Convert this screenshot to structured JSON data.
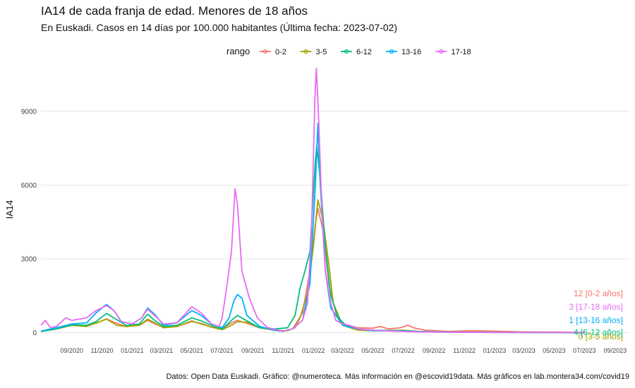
{
  "header": {
    "title": "IA14 de cada franja de edad. Menores de 18 años",
    "subtitle": "En Euskadi. Casos en 14 días por 100.000 habitantes  (Última fecha: 2023-07-02)"
  },
  "footer": {
    "caption": "Datos: Open Data Euskadi. Gráfico: @numeroteca. Más información en @escovid19data.  Más gráficos en lab.montera34.com/covid19"
  },
  "chart_data": {
    "type": "line",
    "title": "IA14 de cada franja de edad. Menores de 18 años",
    "subtitle": "En Euskadi. Casos en 14 días por 100.000 habitantes  (Última fecha: 2023-07-02)",
    "xlabel": "",
    "ylabel": "IA14",
    "xlim": [
      "2020-07-01",
      "2023-10-01"
    ],
    "ylim": [
      -300,
      10800
    ],
    "yticks": [
      0,
      3000,
      6000,
      9000
    ],
    "xticks": [
      {
        "date": "2020-09-01",
        "label": "09/2020"
      },
      {
        "date": "2020-11-01",
        "label": "11/2020"
      },
      {
        "date": "2021-01-01",
        "label": "01/2021"
      },
      {
        "date": "2021-03-01",
        "label": "03/2021"
      },
      {
        "date": "2021-05-01",
        "label": "05/2021"
      },
      {
        "date": "2021-07-01",
        "label": "07/2021"
      },
      {
        "date": "2021-09-01",
        "label": "09/2021"
      },
      {
        "date": "2021-11-01",
        "label": "11/2021"
      },
      {
        "date": "2022-01-01",
        "label": "01/2022"
      },
      {
        "date": "2022-03-01",
        "label": "03/2022"
      },
      {
        "date": "2022-05-01",
        "label": "05/2022"
      },
      {
        "date": "2022-07-01",
        "label": "07/2022"
      },
      {
        "date": "2022-09-01",
        "label": "09/2022"
      },
      {
        "date": "2022-11-01",
        "label": "11/2022"
      },
      {
        "date": "2023-01-01",
        "label": "01/2023"
      },
      {
        "date": "2023-03-01",
        "label": "03/2023"
      },
      {
        "date": "2023-05-01",
        "label": "05/2023"
      },
      {
        "date": "2023-07-01",
        "label": "07/2023"
      },
      {
        "date": "2023-09-01",
        "label": "09/2023"
      }
    ],
    "grid": true,
    "legend": {
      "title": "rango",
      "position": "top"
    },
    "series": [
      {
        "name": "0-2",
        "color": "#F8766D",
        "end_label": "12 [0-2 años]",
        "points": [
          [
            "2020-07-01",
            50
          ],
          [
            "2020-08-01",
            150
          ],
          [
            "2020-09-01",
            300
          ],
          [
            "2020-10-01",
            300
          ],
          [
            "2020-10-20",
            380
          ],
          [
            "2020-11-10",
            560
          ],
          [
            "2020-11-25",
            420
          ],
          [
            "2020-12-20",
            250
          ],
          [
            "2021-01-15",
            300
          ],
          [
            "2021-02-01",
            500
          ],
          [
            "2021-02-15",
            360
          ],
          [
            "2021-03-05",
            220
          ],
          [
            "2021-04-01",
            250
          ],
          [
            "2021-05-01",
            450
          ],
          [
            "2021-05-20",
            380
          ],
          [
            "2021-06-10",
            220
          ],
          [
            "2021-07-01",
            150
          ],
          [
            "2021-07-20",
            400
          ],
          [
            "2021-08-01",
            500
          ],
          [
            "2021-08-20",
            380
          ],
          [
            "2021-09-15",
            200
          ],
          [
            "2021-10-15",
            100
          ],
          [
            "2021-11-01",
            50
          ],
          [
            "2021-11-20",
            150
          ],
          [
            "2021-12-10",
            800
          ],
          [
            "2021-12-25",
            2500
          ],
          [
            "2022-01-05",
            4400
          ],
          [
            "2022-01-10",
            5050
          ],
          [
            "2022-01-20",
            4200
          ],
          [
            "2022-02-01",
            2000
          ],
          [
            "2022-02-15",
            800
          ],
          [
            "2022-03-01",
            350
          ],
          [
            "2022-04-01",
            200
          ],
          [
            "2022-05-01",
            180
          ],
          [
            "2022-05-15",
            250
          ],
          [
            "2022-06-01",
            150
          ],
          [
            "2022-06-25",
            200
          ],
          [
            "2022-07-10",
            300
          ],
          [
            "2022-07-25",
            180
          ],
          [
            "2022-08-15",
            100
          ],
          [
            "2022-10-01",
            50
          ],
          [
            "2022-11-15",
            80
          ],
          [
            "2023-01-01",
            60
          ],
          [
            "2023-03-01",
            30
          ],
          [
            "2023-05-01",
            20
          ],
          [
            "2023-07-02",
            12
          ]
        ]
      },
      {
        "name": "3-5",
        "color": "#A3A500",
        "end_label": "0 [3-5 años]",
        "points": [
          [
            "2020-07-01",
            50
          ],
          [
            "2020-08-01",
            150
          ],
          [
            "2020-09-01",
            300
          ],
          [
            "2020-10-01",
            250
          ],
          [
            "2020-11-10",
            550
          ],
          [
            "2020-12-01",
            300
          ],
          [
            "2020-12-20",
            250
          ],
          [
            "2021-01-15",
            300
          ],
          [
            "2021-02-01",
            550
          ],
          [
            "2021-02-15",
            400
          ],
          [
            "2021-03-05",
            200
          ],
          [
            "2021-04-01",
            250
          ],
          [
            "2021-05-01",
            480
          ],
          [
            "2021-05-20",
            350
          ],
          [
            "2021-06-15",
            200
          ],
          [
            "2021-07-01",
            120
          ],
          [
            "2021-07-20",
            300
          ],
          [
            "2021-08-01",
            450
          ],
          [
            "2021-08-20",
            420
          ],
          [
            "2021-09-15",
            200
          ],
          [
            "2021-10-15",
            100
          ],
          [
            "2021-11-10",
            80
          ],
          [
            "2021-11-25",
            200
          ],
          [
            "2021-12-05",
            600
          ],
          [
            "2021-12-20",
            1600
          ],
          [
            "2022-01-01",
            3500
          ],
          [
            "2022-01-10",
            5400
          ],
          [
            "2022-01-20",
            4600
          ],
          [
            "2022-02-01",
            2800
          ],
          [
            "2022-02-10",
            1200
          ],
          [
            "2022-03-01",
            300
          ],
          [
            "2022-04-01",
            100
          ],
          [
            "2022-05-01",
            80
          ],
          [
            "2022-07-01",
            100
          ],
          [
            "2022-08-01",
            50
          ],
          [
            "2022-10-01",
            30
          ],
          [
            "2023-01-01",
            20
          ],
          [
            "2023-04-01",
            10
          ],
          [
            "2023-07-02",
            0
          ]
        ]
      },
      {
        "name": "6-12",
        "color": "#00BF7D",
        "end_label": "4 [6-12 años]",
        "points": [
          [
            "2020-07-01",
            50
          ],
          [
            "2020-08-01",
            150
          ],
          [
            "2020-09-01",
            320
          ],
          [
            "2020-10-01",
            300
          ],
          [
            "2020-10-20",
            450
          ],
          [
            "2020-11-10",
            780
          ],
          [
            "2020-11-25",
            600
          ],
          [
            "2020-12-20",
            300
          ],
          [
            "2021-01-15",
            350
          ],
          [
            "2021-02-01",
            750
          ],
          [
            "2021-02-15",
            500
          ],
          [
            "2021-03-05",
            250
          ],
          [
            "2021-04-01",
            300
          ],
          [
            "2021-05-01",
            600
          ],
          [
            "2021-05-20",
            480
          ],
          [
            "2021-06-15",
            250
          ],
          [
            "2021-07-01",
            150
          ],
          [
            "2021-07-20",
            500
          ],
          [
            "2021-08-01",
            700
          ],
          [
            "2021-08-20",
            480
          ],
          [
            "2021-09-15",
            200
          ],
          [
            "2021-10-15",
            150
          ],
          [
            "2021-11-10",
            200
          ],
          [
            "2021-11-25",
            700
          ],
          [
            "2021-12-05",
            1800
          ],
          [
            "2021-12-15",
            2500
          ],
          [
            "2021-12-25",
            3300
          ],
          [
            "2022-01-05",
            7000
          ],
          [
            "2022-01-08",
            7600
          ],
          [
            "2022-01-15",
            6200
          ],
          [
            "2022-01-25",
            3500
          ],
          [
            "2022-02-05",
            1500
          ],
          [
            "2022-02-20",
            600
          ],
          [
            "2022-03-10",
            250
          ],
          [
            "2022-04-01",
            150
          ],
          [
            "2022-05-01",
            100
          ],
          [
            "2022-07-01",
            80
          ],
          [
            "2022-08-01",
            40
          ],
          [
            "2022-10-01",
            20
          ],
          [
            "2023-01-01",
            15
          ],
          [
            "2023-04-01",
            10
          ],
          [
            "2023-07-02",
            4
          ]
        ]
      },
      {
        "name": "13-16",
        "color": "#00B0F6",
        "end_label": "1 [13-16 años]",
        "points": [
          [
            "2020-07-01",
            60
          ],
          [
            "2020-08-01",
            200
          ],
          [
            "2020-09-01",
            350
          ],
          [
            "2020-10-01",
            400
          ],
          [
            "2020-10-20",
            800
          ],
          [
            "2020-11-10",
            1150
          ],
          [
            "2020-11-25",
            900
          ],
          [
            "2020-12-10",
            450
          ],
          [
            "2021-01-01",
            350
          ],
          [
            "2021-01-20",
            600
          ],
          [
            "2021-02-01",
            1000
          ],
          [
            "2021-02-15",
            750
          ],
          [
            "2021-03-05",
            300
          ],
          [
            "2021-04-01",
            400
          ],
          [
            "2021-05-01",
            900
          ],
          [
            "2021-05-20",
            700
          ],
          [
            "2021-06-10",
            350
          ],
          [
            "2021-07-01",
            200
          ],
          [
            "2021-07-15",
            600
          ],
          [
            "2021-07-25",
            1300
          ],
          [
            "2021-08-01",
            1550
          ],
          [
            "2021-08-10",
            1400
          ],
          [
            "2021-08-20",
            700
          ],
          [
            "2021-09-15",
            250
          ],
          [
            "2021-10-15",
            100
          ],
          [
            "2021-11-01",
            60
          ],
          [
            "2021-11-20",
            150
          ],
          [
            "2021-12-10",
            500
          ],
          [
            "2021-12-25",
            2000
          ],
          [
            "2022-01-05",
            6000
          ],
          [
            "2022-01-10",
            8500
          ],
          [
            "2022-01-15",
            6000
          ],
          [
            "2022-01-25",
            2500
          ],
          [
            "2022-02-05",
            1000
          ],
          [
            "2022-03-01",
            300
          ],
          [
            "2022-04-01",
            150
          ],
          [
            "2022-05-01",
            80
          ],
          [
            "2022-07-01",
            60
          ],
          [
            "2022-08-01",
            40
          ],
          [
            "2022-10-01",
            20
          ],
          [
            "2023-01-01",
            10
          ],
          [
            "2023-04-01",
            5
          ],
          [
            "2023-07-02",
            1
          ]
        ]
      },
      {
        "name": "17-18",
        "color": "#E76BF3",
        "end_label": "3 [17-18 años]",
        "points": [
          [
            "2020-07-01",
            300
          ],
          [
            "2020-07-10",
            500
          ],
          [
            "2020-07-20",
            200
          ],
          [
            "2020-08-01",
            250
          ],
          [
            "2020-08-20",
            600
          ],
          [
            "2020-09-01",
            500
          ],
          [
            "2020-10-01",
            600
          ],
          [
            "2020-10-20",
            900
          ],
          [
            "2020-11-10",
            1100
          ],
          [
            "2020-11-25",
            900
          ],
          [
            "2020-12-10",
            450
          ],
          [
            "2021-01-01",
            350
          ],
          [
            "2021-01-20",
            600
          ],
          [
            "2021-02-01",
            950
          ],
          [
            "2021-02-15",
            700
          ],
          [
            "2021-03-05",
            350
          ],
          [
            "2021-04-01",
            400
          ],
          [
            "2021-05-01",
            1050
          ],
          [
            "2021-05-20",
            800
          ],
          [
            "2021-06-10",
            350
          ],
          [
            "2021-06-25",
            250
          ],
          [
            "2021-07-01",
            600
          ],
          [
            "2021-07-10",
            1800
          ],
          [
            "2021-07-20",
            3300
          ],
          [
            "2021-07-27",
            5850
          ],
          [
            "2021-08-01",
            5200
          ],
          [
            "2021-08-10",
            2500
          ],
          [
            "2021-08-25",
            1400
          ],
          [
            "2021-09-10",
            600
          ],
          [
            "2021-10-01",
            200
          ],
          [
            "2021-11-01",
            60
          ],
          [
            "2021-11-20",
            150
          ],
          [
            "2021-12-10",
            500
          ],
          [
            "2021-12-20",
            1200
          ],
          [
            "2021-12-28",
            4000
          ],
          [
            "2022-01-04",
            9500
          ],
          [
            "2022-01-07",
            10750
          ],
          [
            "2022-01-12",
            8500
          ],
          [
            "2022-01-18",
            5000
          ],
          [
            "2022-01-25",
            2500
          ],
          [
            "2022-02-05",
            1200
          ],
          [
            "2022-02-15",
            500
          ],
          [
            "2022-03-01",
            350
          ],
          [
            "2022-03-15",
            300
          ],
          [
            "2022-04-01",
            150
          ],
          [
            "2022-05-01",
            100
          ],
          [
            "2022-07-01",
            50
          ],
          [
            "2022-08-01",
            30
          ],
          [
            "2022-10-01",
            20
          ],
          [
            "2023-01-01",
            10
          ],
          [
            "2023-04-01",
            8
          ],
          [
            "2023-07-02",
            3
          ]
        ]
      }
    ]
  }
}
